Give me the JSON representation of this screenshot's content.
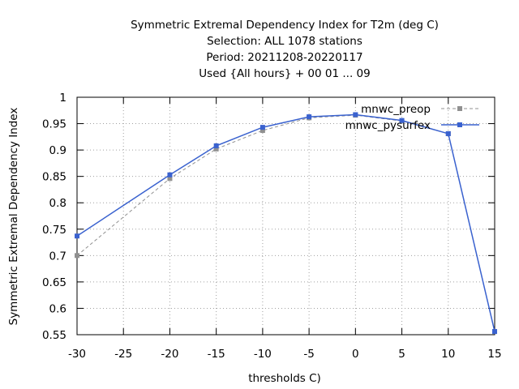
{
  "chart_data": {
    "type": "line",
    "title_lines": [
      "Symmetric Extremal Dependency Index  for T2m (deg C)",
      "Selection: ALL    1078 stations",
      "Period: 20211208-20220117",
      "Used {All hours} + 00 01 ... 09"
    ],
    "xlabel": "thresholds C)",
    "ylabel": "Symmetric Extremal Dependency Index",
    "xlim": [
      -30,
      15
    ],
    "ylim": [
      0.55,
      1
    ],
    "xticks": [
      -30,
      -25,
      -20,
      -15,
      -10,
      -5,
      0,
      5,
      10,
      15
    ],
    "yticks": [
      0.55,
      0.6,
      0.65,
      0.7,
      0.75,
      0.8,
      0.85,
      0.9,
      0.95,
      1
    ],
    "ytick_labels": [
      "0.55",
      "0.6",
      "0.65",
      "0.7",
      "0.75",
      "0.8",
      "0.85",
      "0.9",
      "0.95",
      "1"
    ],
    "grid": true,
    "legend_position": "top-right",
    "x": [
      -30,
      -20,
      -15,
      -10,
      -5,
      0,
      5,
      10,
      15
    ],
    "series": [
      {
        "name": "mnwc_preop",
        "color": "#909090",
        "dashed": true,
        "values": [
          0.7,
          0.846,
          0.902,
          0.937,
          0.961,
          0.966,
          0.955,
          0.931,
          0.556
        ]
      },
      {
        "name": "mnwc_pysurfex",
        "color": "#3a62cf",
        "dashed": false,
        "values": [
          0.737,
          0.853,
          0.908,
          0.943,
          0.963,
          0.967,
          0.956,
          0.931,
          0.556
        ]
      }
    ]
  }
}
